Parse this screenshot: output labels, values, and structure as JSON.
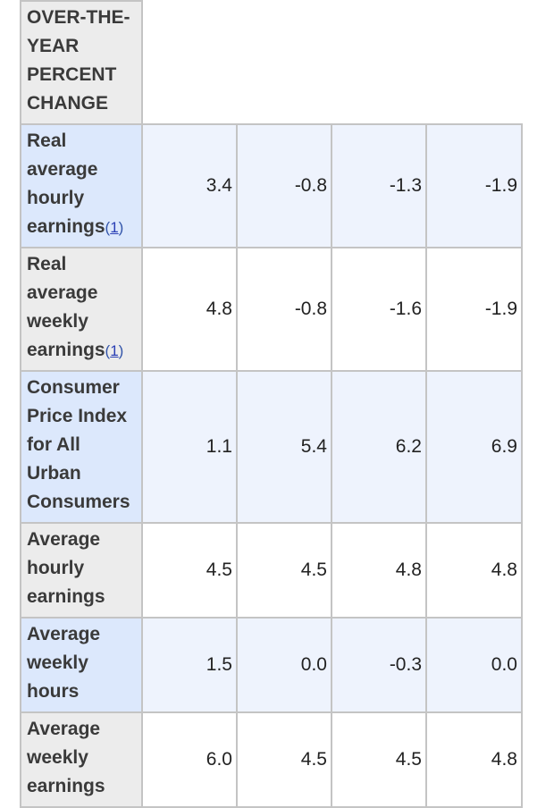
{
  "table": {
    "header_label": "OVER-THE-YEAR PERCENT CHANGE",
    "rows": [
      {
        "label": "Real average hourly earnings",
        "footnote": "1",
        "values": [
          "3.4",
          "-0.8",
          "-1.3",
          "-1.9"
        ]
      },
      {
        "label": "Real average weekly earnings",
        "footnote": "1",
        "values": [
          "4.8",
          "-0.8",
          "-1.6",
          "-1.9"
        ]
      },
      {
        "label": "Consumer Price Index for All Urban Consumers",
        "footnote": "",
        "values": [
          "1.1",
          "5.4",
          "6.2",
          "6.9"
        ]
      },
      {
        "label": "Average hourly earnings",
        "footnote": "",
        "values": [
          "4.5",
          "4.5",
          "4.8",
          "4.8"
        ]
      },
      {
        "label": "Average weekly hours",
        "footnote": "",
        "values": [
          "1.5",
          "0.0",
          "-0.3",
          "0.0"
        ]
      },
      {
        "label": "Average weekly earnings",
        "footnote": "",
        "values": [
          "6.0",
          "4.5",
          "4.5",
          "4.8"
        ]
      }
    ]
  }
}
